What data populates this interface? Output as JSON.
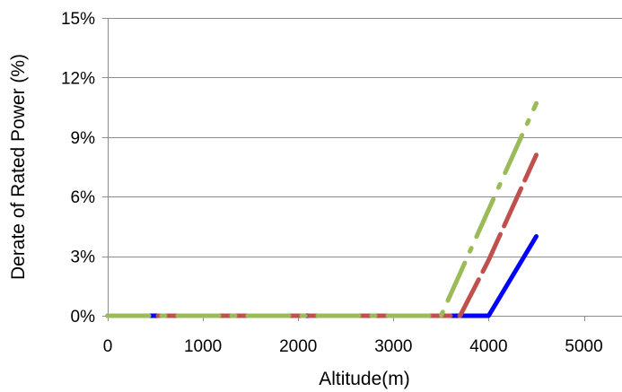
{
  "chart_data": {
    "type": "line",
    "title": "",
    "xlabel": "Altitude(m)",
    "ylabel": "Derate of Rated Power (%)",
    "xlim": [
      0,
      5400
    ],
    "ylim": [
      0,
      15
    ],
    "x_ticks": [
      0,
      1000,
      2000,
      3000,
      4000,
      5000
    ],
    "x_tick_labels": [
      "0",
      "1000",
      "2000",
      "3000",
      "4000",
      "5000"
    ],
    "y_ticks": [
      0,
      3,
      6,
      9,
      12,
      15
    ],
    "y_tick_labels": [
      "0%",
      "3%",
      "6%",
      "9%",
      "12%",
      "15%"
    ],
    "grid": "horizontal",
    "legend": "none",
    "series": [
      {
        "color": "#0000ff",
        "style": "solid",
        "x": [
          0,
          4000,
          4500
        ],
        "y": [
          0,
          0,
          4.0
        ]
      },
      {
        "color": "#c0504d",
        "style": "dashed",
        "x": [
          0,
          3700,
          4000,
          4500
        ],
        "y": [
          0,
          0,
          2.8,
          8.1
        ]
      },
      {
        "color": "#9bbb59",
        "style": "dash-dot",
        "x": [
          0,
          3500,
          4500
        ],
        "y": [
          0,
          0,
          10.7
        ]
      }
    ]
  }
}
